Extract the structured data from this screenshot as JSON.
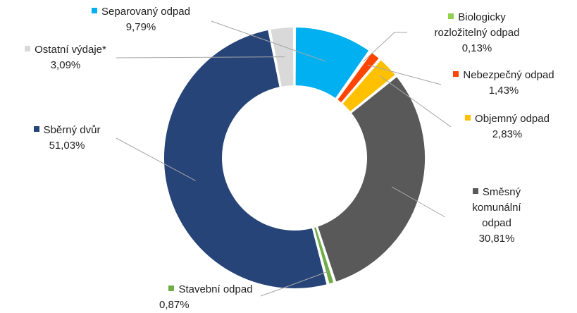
{
  "chart_data": {
    "type": "pie",
    "donut": true,
    "title": "",
    "legend": "none",
    "slices": [
      {
        "name": "Separovaný odpad",
        "value": 9.79,
        "label": "9,79%",
        "color": "#00b0f0"
      },
      {
        "name": "Biologicky rozložitelný odpad",
        "value": 0.13,
        "label": "0,13%",
        "color": "#92d050"
      },
      {
        "name": "Nebezpečný odpad",
        "value": 1.43,
        "label": "1,43%",
        "color": "#ff4500"
      },
      {
        "name": "Objemný odpad",
        "value": 2.83,
        "label": "2,83%",
        "color": "#ffc000"
      },
      {
        "name": "Směsný komunální odpad",
        "value": 30.81,
        "label": "30,81%",
        "color": "#595959"
      },
      {
        "name": "Stavební odpad",
        "value": 0.87,
        "label": "0,87%",
        "color": "#70ad47"
      },
      {
        "name": "Sběrný dvůr",
        "value": 51.03,
        "label": "51,03%",
        "color": "#264478"
      },
      {
        "name": "Ostatní výdaje*",
        "value": 3.09,
        "label": "3,09%",
        "color": "#d9d9d9"
      }
    ]
  },
  "labels": {
    "separovany": {
      "line1": "Separovaný odpad",
      "pct": "9,79%"
    },
    "biologicky": {
      "line1": "Biologicky",
      "line2": "rozložitelný odpad",
      "pct": "0,13%"
    },
    "nebezpecny": {
      "line1": "Nebezpečný odpad",
      "pct": "1,43%"
    },
    "objemny": {
      "line1": "Objemný odpad",
      "pct": "2,83%"
    },
    "smesny": {
      "line1": "Směsný",
      "line2": "komunální",
      "line3": "odpad",
      "pct": "30,81%"
    },
    "stavebni": {
      "line1": "Stavební odpad",
      "pct": "0,87%"
    },
    "sberny": {
      "line1": "Sběrný dvůr",
      "pct": "51,03%"
    },
    "ostatni": {
      "line1": "Ostatní výdaje*",
      "pct": "3,09%"
    }
  }
}
